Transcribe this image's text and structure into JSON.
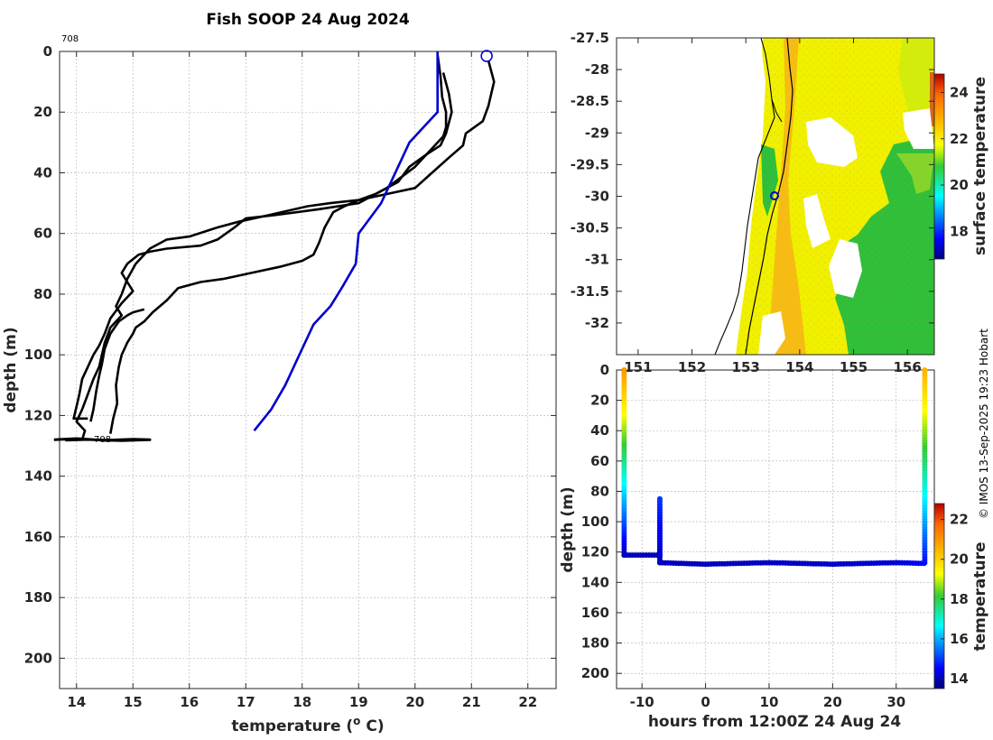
{
  "title": "Fish SOOP 24 Aug 2024",
  "credit": "© IMOS 13-Sep-2025 19:23 Hobart",
  "station_id": "708",
  "colors": {
    "profile_line": "#000000",
    "climatology_line": "#0000cc",
    "marker": "#0000cc"
  },
  "chart_data": [
    {
      "type": "line",
      "name": "profile-plot",
      "xlabel": "temperature (",
      "xlabel_sup": "o",
      "xlabel_unit": " C)",
      "ylabel": "depth (m)",
      "xlim": [
        13.7,
        22.5
      ],
      "ylim": [
        0,
        210
      ],
      "xticks": [
        14,
        15,
        16,
        17,
        18,
        19,
        20,
        21,
        22
      ],
      "yticks": [
        0,
        20,
        40,
        60,
        80,
        100,
        120,
        140,
        160,
        180,
        200
      ],
      "series": [
        {
          "name": "profile-1",
          "color": "#000000",
          "points": [
            [
              20.4,
              1
            ],
            [
              20.45,
              8
            ],
            [
              20.48,
              15
            ],
            [
              20.55,
              20
            ],
            [
              20.55,
              25
            ],
            [
              20.5,
              28
            ],
            [
              20.3,
              32
            ],
            [
              20.0,
              38
            ],
            [
              19.5,
              45
            ],
            [
              19.0,
              50
            ],
            [
              18.3,
              52
            ],
            [
              17.5,
              54
            ],
            [
              17.0,
              55
            ],
            [
              16.8,
              58
            ],
            [
              16.5,
              62
            ],
            [
              16.2,
              64
            ],
            [
              15.6,
              65
            ],
            [
              15.3,
              66
            ],
            [
              15.1,
              67
            ],
            [
              14.9,
              70
            ],
            [
              14.8,
              73
            ],
            [
              14.9,
              76
            ],
            [
              15.0,
              79
            ],
            [
              14.8,
              83
            ],
            [
              14.6,
              88
            ],
            [
              14.5,
              93
            ],
            [
              14.4,
              97
            ],
            [
              14.3,
              100
            ],
            [
              14.2,
              104
            ],
            [
              14.1,
              108
            ],
            [
              14.05,
              113
            ],
            [
              14.0,
              117
            ],
            [
              13.95,
              121
            ],
            [
              14.2,
              121
            ]
          ]
        },
        {
          "name": "profile-2",
          "color": "#000000",
          "points": [
            [
              21.3,
              3
            ],
            [
              21.4,
              10
            ],
            [
              21.3,
              18
            ],
            [
              21.2,
              23
            ],
            [
              20.9,
              27
            ],
            [
              20.85,
              31
            ],
            [
              20.6,
              35
            ],
            [
              20.3,
              40
            ],
            [
              20.0,
              45
            ],
            [
              19.5,
              47
            ],
            [
              19.0,
              49
            ],
            [
              18.5,
              50
            ],
            [
              18.1,
              51
            ],
            [
              17.4,
              54
            ],
            [
              16.9,
              56
            ],
            [
              16.5,
              58
            ],
            [
              16.0,
              61
            ],
            [
              15.6,
              62
            ],
            [
              15.3,
              65
            ],
            [
              15.05,
              70
            ],
            [
              14.9,
              75
            ],
            [
              14.8,
              80
            ],
            [
              14.7,
              84
            ],
            [
              14.8,
              87
            ],
            [
              14.6,
              91
            ],
            [
              14.5,
              96
            ],
            [
              14.45,
              100
            ],
            [
              14.4,
              104
            ],
            [
              14.3,
              108
            ],
            [
              14.2,
              113
            ],
            [
              14.1,
              118
            ],
            [
              14.0,
              122
            ],
            [
              14.15,
              125
            ],
            [
              14.1,
              128
            ]
          ]
        },
        {
          "name": "profile-3",
          "color": "#000000",
          "points": [
            [
              20.5,
              7
            ],
            [
              20.6,
              14
            ],
            [
              20.65,
              20
            ],
            [
              20.55,
              27
            ],
            [
              20.45,
              31
            ],
            [
              20.2,
              34
            ],
            [
              19.9,
              38
            ],
            [
              19.7,
              43
            ],
            [
              19.3,
              47
            ],
            [
              19.0,
              49
            ],
            [
              18.75,
              51
            ],
            [
              18.55,
              53
            ],
            [
              18.4,
              58
            ],
            [
              18.3,
              63
            ],
            [
              18.2,
              67
            ],
            [
              18.0,
              69
            ],
            [
              17.6,
              71
            ],
            [
              17.1,
              73
            ],
            [
              16.6,
              75
            ],
            [
              16.2,
              76
            ],
            [
              15.8,
              78
            ],
            [
              15.6,
              82
            ],
            [
              15.35,
              86
            ],
            [
              15.2,
              89
            ],
            [
              15.05,
              91
            ],
            [
              15.0,
              93
            ],
            [
              14.9,
              96
            ],
            [
              14.85,
              98
            ],
            [
              14.8,
              100
            ],
            [
              14.75,
              104
            ],
            [
              14.7,
              110
            ],
            [
              14.72,
              116
            ],
            [
              14.65,
              121
            ],
            [
              14.6,
              126
            ]
          ]
        },
        {
          "name": "profile-1-tail",
          "color": "#000000",
          "points": [
            [
              15.2,
              85
            ],
            [
              15.0,
              86
            ],
            [
              14.9,
              87
            ],
            [
              14.75,
              89
            ],
            [
              14.6,
              93
            ],
            [
              14.5,
              98
            ],
            [
              14.45,
              103
            ],
            [
              14.4,
              107
            ],
            [
              14.35,
              112
            ],
            [
              14.3,
              118
            ],
            [
              14.25,
              122
            ]
          ]
        },
        {
          "name": "bottom-scatter",
          "color": "#000000",
          "points": [
            [
              13.6,
              128
            ],
            [
              14.0,
              127.6
            ],
            [
              14.5,
              128.2
            ],
            [
              15.0,
              127.8
            ],
            [
              15.3,
              128
            ],
            [
              14.8,
              128.3
            ],
            [
              14.2,
              127.9
            ],
            [
              13.8,
              128.1
            ]
          ]
        },
        {
          "name": "climatology",
          "color": "#0000cc",
          "points": [
            [
              20.4,
              0
            ],
            [
              20.4,
              20
            ],
            [
              20.15,
              25
            ],
            [
              19.9,
              30
            ],
            [
              19.7,
              38
            ],
            [
              19.55,
              44
            ],
            [
              19.4,
              50
            ],
            [
              19.2,
              55
            ],
            [
              19.0,
              60
            ],
            [
              18.95,
              70
            ],
            [
              18.7,
              78
            ],
            [
              18.5,
              84
            ],
            [
              18.2,
              90
            ],
            [
              17.95,
              100
            ],
            [
              17.7,
              110
            ],
            [
              17.45,
              118
            ],
            [
              17.15,
              125
            ]
          ]
        }
      ],
      "annotations": [
        {
          "text": "708",
          "x": 14.4,
          "y": 129
        }
      ],
      "marker": {
        "x": 21.27,
        "y": 1.5,
        "color": "#0000cc"
      }
    },
    {
      "type": "heatmap",
      "name": "surface-map",
      "xticks": [
        151,
        152,
        153,
        154,
        155,
        156
      ],
      "yticks": [
        -27.5,
        -28,
        -28.5,
        -29,
        -29.5,
        -30,
        -30.5,
        -31,
        -31.5,
        -32
      ],
      "xlim": [
        150.6,
        156.5
      ],
      "ylim": [
        -32.5,
        -27.5
      ],
      "colorbar": {
        "label": "surface temperature",
        "ticks": [
          18,
          20,
          22,
          24
        ],
        "range": [
          16.8,
          24.8
        ]
      },
      "marker": {
        "lon": 153.55,
        "lat": -30.0,
        "color": "#0000cc"
      }
    },
    {
      "type": "scatter",
      "name": "depth-time-plot",
      "xlabel": "hours from 12:00Z 24 Aug 24",
      "ylabel": "depth (m)",
      "xlim": [
        -14,
        36
      ],
      "ylim": [
        0,
        210
      ],
      "xticks": [
        -10,
        0,
        10,
        20,
        30
      ],
      "yticks": [
        0,
        20,
        40,
        60,
        80,
        100,
        120,
        140,
        160,
        180,
        200
      ],
      "colorbar": {
        "label": "temperature",
        "ticks": [
          14,
          16,
          18,
          20,
          22
        ],
        "range": [
          13.5,
          22.8
        ]
      },
      "segments": [
        {
          "hours": [
            -12.8,
            -12.8
          ],
          "depths": [
            0,
            122
          ],
          "temps": [
            21.0,
            14.0
          ]
        },
        {
          "hours": [
            -12.8,
            -7.2
          ],
          "depths": [
            122,
            122
          ],
          "temps": [
            14.0,
            14.0
          ]
        },
        {
          "hours": [
            -7.2,
            -7.2
          ],
          "depths": [
            122,
            85
          ],
          "temps": [
            14.0,
            15.0
          ]
        },
        {
          "hours": [
            -7.2,
            -7.2
          ],
          "depths": [
            85,
            127
          ],
          "temps": [
            15.0,
            14.0
          ]
        },
        {
          "hours": [
            -7.2,
            0,
            10,
            20,
            30,
            34.4
          ],
          "depths": [
            127,
            128,
            127,
            128,
            127,
            127.5
          ],
          "temps": [
            14.0,
            14.0,
            14.05,
            14.1,
            14.2,
            14.6
          ]
        },
        {
          "hours": [
            34.5,
            34.5
          ],
          "depths": [
            127,
            0
          ],
          "temps": [
            14.6,
            20.5
          ]
        }
      ]
    }
  ]
}
